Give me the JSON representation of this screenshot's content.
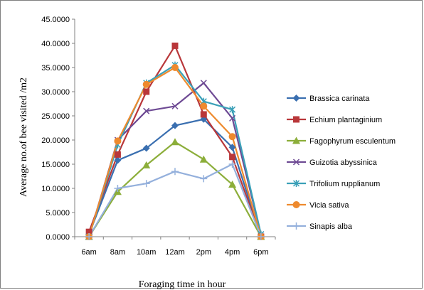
{
  "chart_data": {
    "type": "line",
    "title": "",
    "xlabel": "Foraging time in hour",
    "ylabel": "Average no.of bee  visited /m2",
    "categories": [
      "6am",
      "8am",
      "10am",
      "12am",
      "2pm",
      "4pm",
      "6pm"
    ],
    "y_ticks": [
      "0.0000",
      "5.0000",
      "10.0000",
      "15.0000",
      "20.0000",
      "25.0000",
      "30.0000",
      "35.0000",
      "40.0000",
      "45.0000"
    ],
    "ylim": [
      0,
      45
    ],
    "grid": false,
    "legend_position": "right",
    "series": [
      {
        "name": "Brassica carinata",
        "color": "#3a6fb0",
        "marker": "diamond",
        "values": [
          0.5,
          15.8,
          18.3,
          23.0,
          24.3,
          18.5,
          0.0
        ]
      },
      {
        "name": "Echium plantaginium",
        "color": "#b9373a",
        "marker": "square",
        "values": [
          1.0,
          17.0,
          30.0,
          39.5,
          25.3,
          16.5,
          0.0
        ]
      },
      {
        "name": "Fagophyrum esculentum",
        "color": "#8cae3a",
        "marker": "triangle",
        "values": [
          0.0,
          9.3,
          14.8,
          19.6,
          16.0,
          10.8,
          0.0
        ]
      },
      {
        "name": "Guizotia abyssinica",
        "color": "#6e4a94",
        "marker": "x",
        "values": [
          0.0,
          20.0,
          26.0,
          27.0,
          31.8,
          24.5,
          0.5
        ]
      },
      {
        "name": "Trifolium rupplianum",
        "color": "#3aa0b8",
        "marker": "star",
        "values": [
          0.0,
          19.0,
          31.8,
          35.5,
          28.0,
          26.3,
          0.5
        ]
      },
      {
        "name": "Vicia sativa",
        "color": "#ee8a2e",
        "marker": "circle",
        "values": [
          0.0,
          19.8,
          31.5,
          35.0,
          27.0,
          20.7,
          0.0
        ]
      },
      {
        "name": "Sinapis alba",
        "color": "#94b0dc",
        "marker": "plus",
        "values": [
          0.0,
          10.0,
          11.0,
          13.5,
          12.0,
          15.0,
          0.0
        ]
      }
    ]
  }
}
